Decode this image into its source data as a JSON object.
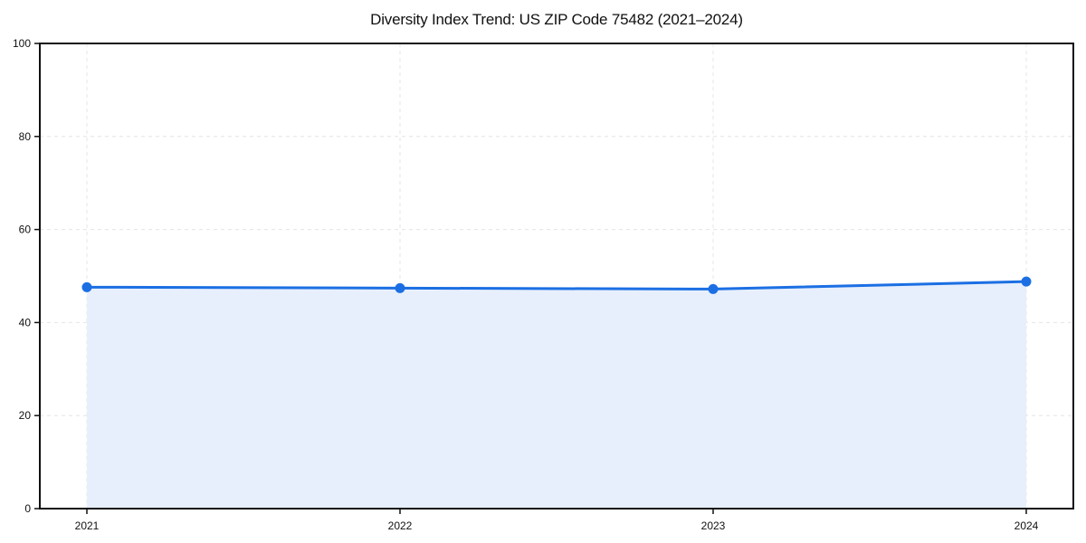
{
  "chart_data": {
    "type": "area",
    "title": "Diversity Index Trend: US ZIP Code 75482 (2021–2024)",
    "categories": [
      "2021",
      "2022",
      "2023",
      "2024"
    ],
    "series": [
      {
        "name": "Diversity Index",
        "values": [
          47.6,
          47.4,
          47.2,
          48.8
        ]
      }
    ],
    "xlabel": "",
    "ylabel": "",
    "ylim": [
      0,
      100
    ],
    "yticks": [
      0,
      20,
      40,
      60,
      80,
      100
    ],
    "grid": "dashed, both axes",
    "legend": false,
    "markers": "filled circles on each data point",
    "colors": {
      "line": "#1b6fe3",
      "marker": "#1b6fe3",
      "area_fill": "#e7effc",
      "grid": "#e4e4e4",
      "axis": "#111111",
      "background": "#ffffff"
    }
  }
}
